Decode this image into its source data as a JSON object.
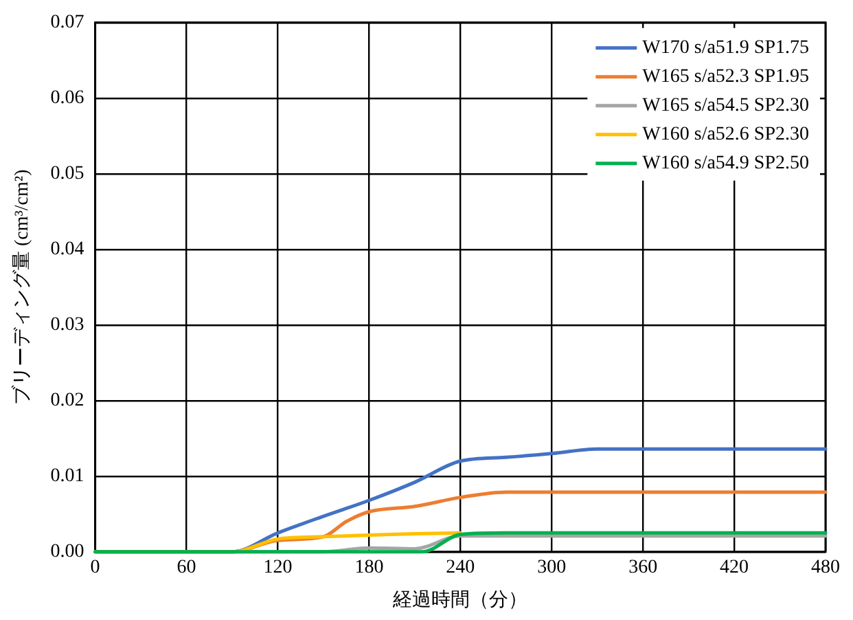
{
  "chart_data": {
    "type": "line",
    "xlabel": "経過時間（分）",
    "ylabel": "ブリーディング量 (cm³/cm²)",
    "xlim": [
      0,
      480
    ],
    "xticks": [
      0,
      60,
      120,
      180,
      240,
      300,
      360,
      420,
      480
    ],
    "ylim": [
      0,
      0.07
    ],
    "yticks": [
      {
        "value": 0,
        "label": "0.00"
      },
      {
        "value": 0.01,
        "label": "0.01"
      },
      {
        "value": 0.02,
        "label": "0.02"
      },
      {
        "value": 0.03,
        "label": "0.03"
      },
      {
        "value": 0.04,
        "label": "0.04"
      },
      {
        "value": 0.05,
        "label": "0.05"
      },
      {
        "value": 0.06,
        "label": "0.06"
      },
      {
        "value": 0.07,
        "label": "0.07"
      }
    ],
    "grid": true,
    "legend": "top right",
    "marker": "none",
    "line_style": "solid",
    "series": [
      {
        "name": "W170 s/a51.9 SP1.75",
        "color": "#4472c4",
        "x": [
          0,
          90,
          120,
          150,
          180,
          210,
          240,
          270,
          300,
          330,
          360,
          420,
          480
        ],
        "values": [
          0,
          0,
          0.0025,
          0.0047,
          0.0068,
          0.0092,
          0.012,
          0.0125,
          0.013,
          0.0136,
          0.0136,
          0.0136,
          0.0136
        ]
      },
      {
        "name": "W165 s/a52.3 SP1.95",
        "color": "#ed7d31",
        "x": [
          0,
          90,
          120,
          150,
          165,
          180,
          210,
          240,
          270,
          300,
          360,
          420,
          480
        ],
        "values": [
          0,
          0,
          0.0015,
          0.002,
          0.004,
          0.0053,
          0.006,
          0.0072,
          0.0079,
          0.0079,
          0.0079,
          0.0079,
          0.0079
        ]
      },
      {
        "name": "W165 s/a54.5 SP2.30",
        "color": "#a5a5a5",
        "x": [
          0,
          150,
          180,
          210,
          240,
          270,
          300,
          360,
          420,
          480
        ],
        "values": [
          0,
          0,
          0.0005,
          0.0004,
          0.0021,
          0.0021,
          0.0021,
          0.0021,
          0.0021,
          0.0021
        ]
      },
      {
        "name": "W160 s/a52.6 SP2.30",
        "color": "#ffc000",
        "x": [
          0,
          90,
          120,
          150,
          180,
          210,
          240
        ],
        "values": [
          0,
          0,
          0.0017,
          0.002,
          0.0022,
          0.0024,
          0.0025
        ]
      },
      {
        "name": "W160 s/a54.9 SP2.50",
        "color": "#00b050",
        "x": [
          0,
          180,
          215,
          240,
          270,
          300,
          360,
          420,
          480
        ],
        "values": [
          0,
          0,
          0,
          0.0023,
          0.0025,
          0.0025,
          0.0025,
          0.0025,
          0.0025
        ]
      }
    ]
  }
}
